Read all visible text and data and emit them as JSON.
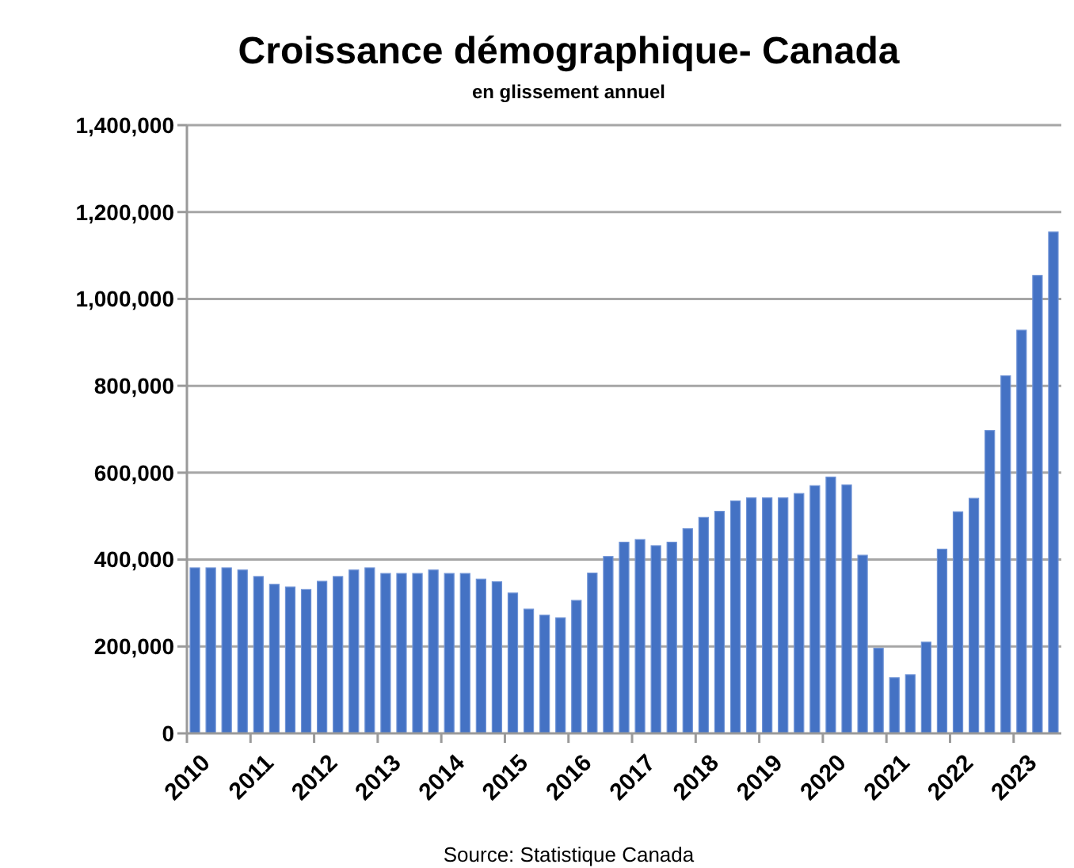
{
  "chart_data": {
    "type": "bar",
    "title": "Croissance démographique- Canada",
    "subtitle": "en glissement annuel",
    "categories": [
      "2010",
      null,
      null,
      null,
      "2011",
      null,
      null,
      null,
      "2012",
      null,
      null,
      null,
      "2013",
      null,
      null,
      null,
      "2014",
      null,
      null,
      null,
      "2015",
      null,
      null,
      null,
      "2016",
      null,
      null,
      null,
      "2017",
      null,
      null,
      null,
      "2018",
      null,
      null,
      null,
      "2019",
      null,
      null,
      null,
      "2020",
      null,
      null,
      null,
      "2021",
      null,
      null,
      null,
      "2022",
      null,
      null,
      null,
      "2023",
      null,
      null
    ],
    "values": [
      381000,
      381000,
      381000,
      376000,
      361000,
      343000,
      337000,
      331000,
      350000,
      361000,
      376000,
      381000,
      368000,
      368000,
      368000,
      376000,
      368000,
      368000,
      355000,
      349000,
      323000,
      286000,
      272000,
      266000,
      306000,
      369000,
      407000,
      440000,
      446000,
      432000,
      440000,
      471000,
      497000,
      511000,
      535000,
      542000,
      542000,
      542000,
      552000,
      570000,
      590000,
      572000,
      410000,
      196000,
      128000,
      135000,
      210000,
      424000,
      510000,
      541000,
      697000,
      823000,
      928000,
      1054000,
      1154000
    ],
    "color": "#4472c4",
    "ylim": [
      0,
      1400000
    ],
    "yticks": [
      {
        "value": 0,
        "label": "0"
      },
      {
        "value": 200000,
        "label": "200,000"
      },
      {
        "value": 400000,
        "label": "400,000"
      },
      {
        "value": 600000,
        "label": "600,000"
      },
      {
        "value": 800000,
        "label": "800,000"
      },
      {
        "value": 1000000,
        "label": "1,000,000"
      },
      {
        "value": 1200000,
        "label": "1,200,000"
      },
      {
        "value": 1400000,
        "label": "1,400,000"
      }
    ],
    "grid": "y",
    "annotations": [
      "Source: Statistique Canada"
    ]
  }
}
